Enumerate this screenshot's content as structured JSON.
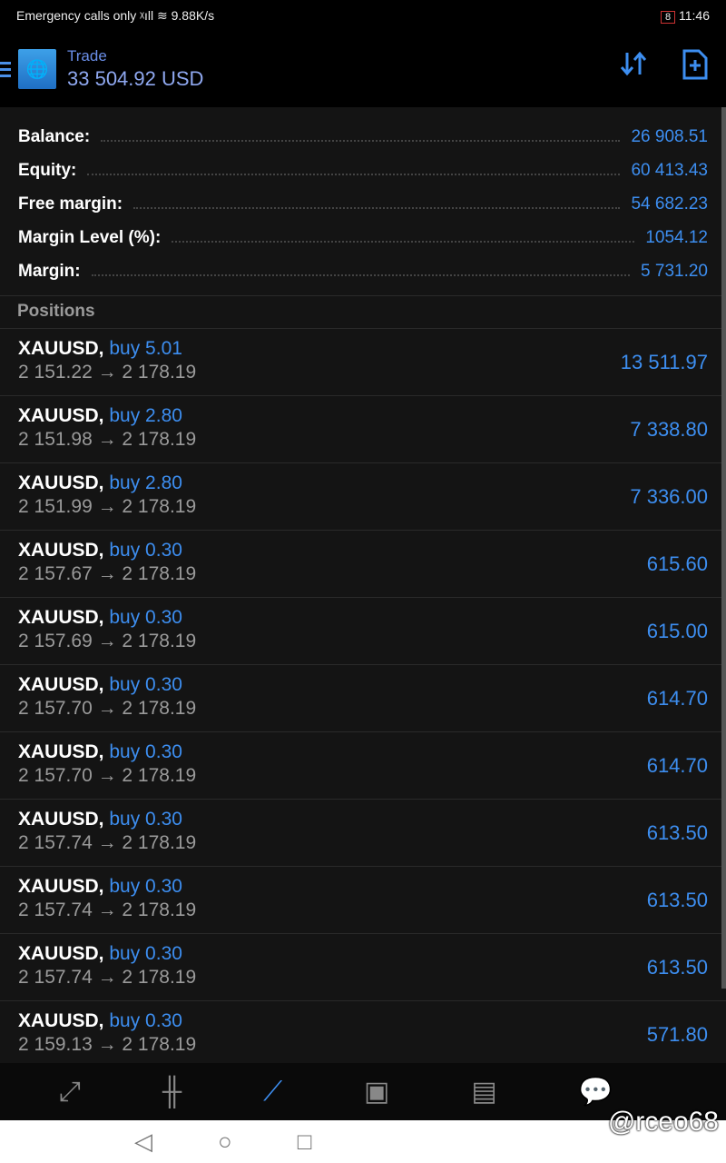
{
  "status": {
    "left": "Emergency calls only",
    "speed": "9.88K/s",
    "battery": "8",
    "time": "11:46"
  },
  "header": {
    "title": "Trade",
    "balance": "33 504.92 USD"
  },
  "summary": [
    {
      "label": "Balance:",
      "value": "26 908.51"
    },
    {
      "label": "Equity:",
      "value": "60 413.43"
    },
    {
      "label": "Free margin:",
      "value": "54 682.23"
    },
    {
      "label": "Margin Level (%):",
      "value": "1054.12"
    },
    {
      "label": "Margin:",
      "value": "5 731.20"
    }
  ],
  "positions_title": "Positions",
  "positions": [
    {
      "symbol": "XAUUSD,",
      "side": "buy 5.01",
      "prices": "2 151.22 → 2 178.19",
      "profit": "13 511.97"
    },
    {
      "symbol": "XAUUSD,",
      "side": "buy 2.80",
      "prices": "2 151.98 → 2 178.19",
      "profit": "7 338.80"
    },
    {
      "symbol": "XAUUSD,",
      "side": "buy 2.80",
      "prices": "2 151.99 → 2 178.19",
      "profit": "7 336.00"
    },
    {
      "symbol": "XAUUSD,",
      "side": "buy 0.30",
      "prices": "2 157.67 → 2 178.19",
      "profit": "615.60"
    },
    {
      "symbol": "XAUUSD,",
      "side": "buy 0.30",
      "prices": "2 157.69 → 2 178.19",
      "profit": "615.00"
    },
    {
      "symbol": "XAUUSD,",
      "side": "buy 0.30",
      "prices": "2 157.70 → 2 178.19",
      "profit": "614.70"
    },
    {
      "symbol": "XAUUSD,",
      "side": "buy 0.30",
      "prices": "2 157.70 → 2 178.19",
      "profit": "614.70"
    },
    {
      "symbol": "XAUUSD,",
      "side": "buy 0.30",
      "prices": "2 157.74 → 2 178.19",
      "profit": "613.50"
    },
    {
      "symbol": "XAUUSD,",
      "side": "buy 0.30",
      "prices": "2 157.74 → 2 178.19",
      "profit": "613.50"
    },
    {
      "symbol": "XAUUSD,",
      "side": "buy 0.30",
      "prices": "2 157.74 → 2 178.19",
      "profit": "613.50"
    },
    {
      "symbol": "XAUUSD,",
      "side": "buy 0.30",
      "prices": "2 159.13 → 2 178.19",
      "profit": "571.80"
    }
  ],
  "nav": [
    {
      "icon": "quotes-icon"
    },
    {
      "icon": "chart-icon"
    },
    {
      "icon": "trade-icon",
      "active": true
    },
    {
      "icon": "history-icon"
    },
    {
      "icon": "news-icon"
    },
    {
      "icon": "chat-icon"
    }
  ],
  "watermark": "@rceo68",
  "accent": "#3d8ef0"
}
